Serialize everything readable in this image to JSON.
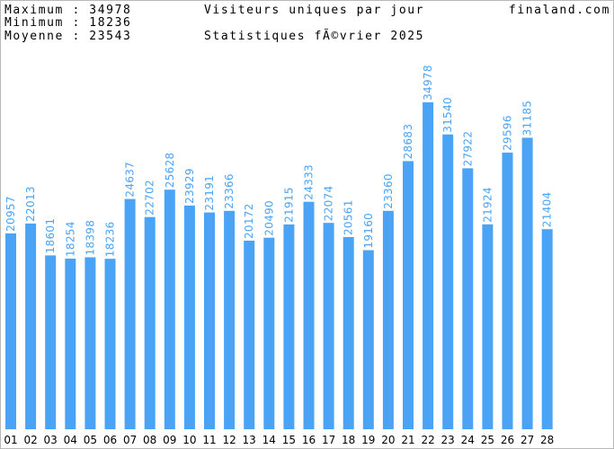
{
  "header": {
    "stats": [
      {
        "label": "Maximum",
        "value": "34978"
      },
      {
        "label": "Minimum",
        "value": "18236"
      },
      {
        "label": "Moyenne",
        "value": "23543"
      }
    ],
    "title": "Visiteurs uniques par jour",
    "subtitle": "Statistiques fÃ©vrier 2025",
    "site": "finaland.com"
  },
  "colors": {
    "bar": "#4aa3f5",
    "value_label": "#4aa3f5",
    "frame": "#b8b8b8",
    "text": "#000000"
  },
  "chart_data": {
    "type": "bar",
    "title": "Visiteurs uniques par jour",
    "subtitle": "Statistiques fÃ©vrier 2025",
    "categories": [
      "01",
      "02",
      "03",
      "04",
      "05",
      "06",
      "07",
      "08",
      "09",
      "10",
      "11",
      "12",
      "13",
      "14",
      "15",
      "16",
      "17",
      "18",
      "19",
      "20",
      "21",
      "22",
      "23",
      "24",
      "25",
      "26",
      "27",
      "28"
    ],
    "values": [
      20957,
      22013,
      18601,
      18254,
      18398,
      18236,
      24637,
      22702,
      25628,
      23929,
      23191,
      23366,
      20172,
      20490,
      21915,
      24333,
      22074,
      20561,
      19160,
      23360,
      28683,
      34978,
      31540,
      27922,
      21924,
      29596,
      31185,
      21404
    ],
    "ylim": [
      0,
      44000
    ],
    "grid": false,
    "legend": "none",
    "value_labels": "vertical, above bars"
  }
}
